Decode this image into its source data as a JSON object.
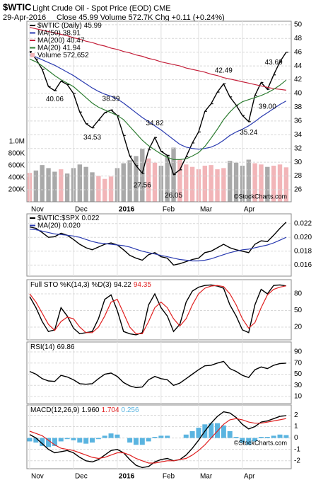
{
  "chart_data": [
    {
      "type": "line",
      "title": "$WTIC",
      "subtitle": "Light Crude Oil - Spot Price (EOD) CME",
      "date": "29-Apr-2016",
      "quote": "Close 45.99  Volume 572.7K  Chg +0.11 (+0.24%)",
      "watermark": "©StockCharts.com",
      "xticks": [
        {
          "value": 0,
          "label": "Nov"
        },
        {
          "value": 7,
          "label": "Dec"
        },
        {
          "value": 14,
          "label": "2016"
        },
        {
          "value": 21,
          "label": "Feb"
        },
        {
          "value": 27,
          "label": "Mar"
        },
        {
          "value": 34,
          "label": "Apr"
        }
      ],
      "ylim": [
        24.25,
        50.5
      ],
      "yticks": [
        26,
        28,
        30,
        32,
        34,
        36,
        38,
        40,
        42,
        44,
        46,
        48,
        50
      ],
      "series": [
        {
          "name": "$WTIC (Daily)",
          "color": "#000000",
          "values": [
            46.1,
            45.0,
            43.5,
            41.0,
            40.4,
            41.8,
            41.3,
            40.0,
            37.3,
            35.6,
            35.0,
            36.1,
            37.2,
            37.6,
            36.8,
            33.9,
            30.9,
            29.5,
            28.4,
            31.8,
            33.6,
            31.6,
            31.0,
            28.2,
            28.9,
            30.8,
            32.8,
            34.4,
            37.4,
            38.5,
            40.2,
            41.4,
            39.5,
            38.3,
            36.8,
            35.9,
            39.7,
            41.6,
            40.6,
            42.7,
            44.6,
            45.99
          ]
        },
        {
          "name": "MA(50)",
          "color": "#2a3bb0",
          "values": [
            45.6,
            45.3,
            44.9,
            44.5,
            44.1,
            43.6,
            43.1,
            42.6,
            42.0,
            41.4,
            40.8,
            40.3,
            39.9,
            39.6,
            39.2,
            38.6,
            37.9,
            37.2,
            36.5,
            35.9,
            35.3,
            34.7,
            34.0,
            33.3,
            32.6,
            32.2,
            32.0,
            31.9,
            32.0,
            32.2,
            32.6,
            33.2,
            33.9,
            34.4,
            34.8,
            35.3,
            35.9,
            36.6,
            37.2,
            37.8,
            38.4,
            38.91
          ]
        },
        {
          "name": "MA(200)",
          "color": "#c4203a",
          "values": [
            49.6,
            49.4,
            49.2,
            49.0,
            48.8,
            48.6,
            48.4,
            48.1,
            47.9,
            47.6,
            47.4,
            47.1,
            46.9,
            46.6,
            46.4,
            46.1,
            45.9,
            45.6,
            45.4,
            45.1,
            44.9,
            44.6,
            44.4,
            44.2,
            44.0,
            43.7,
            43.5,
            43.3,
            43.1,
            42.8,
            42.6,
            42.3,
            42.1,
            41.9,
            41.7,
            41.5,
            41.3,
            41.1,
            40.9,
            40.7,
            40.6,
            40.47
          ]
        },
        {
          "name": "MA(20)",
          "color": "#2e7d32",
          "values": [
            45.0,
            44.6,
            44.0,
            43.3,
            42.6,
            42.0,
            41.5,
            41.0,
            40.2,
            39.4,
            38.6,
            38.0,
            37.6,
            37.2,
            36.8,
            36.2,
            35.2,
            34.2,
            33.2,
            32.4,
            31.8,
            31.2,
            30.7,
            30.4,
            30.4,
            30.5,
            30.9,
            31.4,
            32.3,
            33.5,
            34.8,
            36.2,
            37.3,
            38.2,
            38.8,
            39.1,
            39.4,
            39.7,
            40.1,
            40.6,
            41.2,
            41.94
          ]
        }
      ],
      "annotations": [
        {
          "x": 4,
          "value": 40.06
        },
        {
          "x": 10,
          "value": 34.53
        },
        {
          "x": 13,
          "value": 38.39
        },
        {
          "x": 18,
          "value": 27.56
        },
        {
          "x": 20,
          "value": 34.82
        },
        {
          "x": 23,
          "value": 26.05
        },
        {
          "x": 31,
          "value": 42.49
        },
        {
          "x": 35,
          "value": 35.24
        },
        {
          "x": 38,
          "value": 39,
          "label": "39.00"
        },
        {
          "x": 39,
          "value": 43.69
        }
      ],
      "volume": {
        "name": "Volume",
        "last_label": "572,652",
        "up_color": "#f2b5b8",
        "down_color": "#a9a9a9",
        "ylim": [
          0,
          3000000
        ],
        "yticks": [
          {
            "value": 200000,
            "label": "200K"
          },
          {
            "value": 400000,
            "label": "400K"
          },
          {
            "value": 600000,
            "label": "600K"
          },
          {
            "value": 800000,
            "label": "800K"
          },
          {
            "value": 1000000,
            "label": "1.0M"
          }
        ],
        "values": [
          480000,
          520000,
          610000,
          560000,
          500000,
          540000,
          470000,
          560000,
          620000,
          580000,
          490000,
          430000,
          380000,
          420000,
          560000,
          640000,
          690000,
          760000,
          880000,
          720000,
          650000,
          600000,
          780000,
          900000,
          700000,
          620000,
          580000,
          540000,
          600000,
          610000,
          540000,
          560000,
          680000,
          650000,
          600000,
          700000,
          640000,
          620000,
          580000,
          600000,
          620000,
          572652
        ]
      }
    },
    {
      "type": "line",
      "ylim": [
        0.0144,
        0.0234
      ],
      "yticks": [
        0.016,
        0.018,
        {
          "value": 0.02,
          "label": "0.020"
        },
        0.022
      ],
      "series": [
        {
          "name": "$WTIC:$SPX",
          "color": "#000000",
          "last_label": "0.022",
          "values": [
            0.0215,
            0.0213,
            0.0207,
            0.02,
            0.0201,
            0.0206,
            0.0203,
            0.0197,
            0.019,
            0.0185,
            0.0182,
            0.0186,
            0.019,
            0.0192,
            0.0189,
            0.0182,
            0.0174,
            0.017,
            0.0167,
            0.0175,
            0.0178,
            0.0172,
            0.017,
            0.016,
            0.0162,
            0.0165,
            0.0168,
            0.017,
            0.0178,
            0.018,
            0.0185,
            0.019,
            0.0185,
            0.0182,
            0.018,
            0.0178,
            0.019,
            0.0195,
            0.0194,
            0.0203,
            0.0213,
            0.0222
          ]
        },
        {
          "name": "MA(20)",
          "color": "#2a3bb0",
          "last_label": "0.020",
          "values": [
            0.0212,
            0.0211,
            0.0209,
            0.0207,
            0.0205,
            0.0204,
            0.0203,
            0.0202,
            0.02,
            0.0197,
            0.0194,
            0.0192,
            0.0191,
            0.019,
            0.0189,
            0.0188,
            0.0186,
            0.0183,
            0.018,
            0.0178,
            0.0176,
            0.0174,
            0.0172,
            0.017,
            0.0168,
            0.0167,
            0.0166,
            0.0166,
            0.0167,
            0.0169,
            0.0172,
            0.0175,
            0.0178,
            0.018,
            0.0182,
            0.0183,
            0.0185,
            0.0187,
            0.0189,
            0.0192,
            0.0196,
            0.02
          ]
        }
      ]
    },
    {
      "type": "line",
      "title": "Full STO %K(14,3) %D(3)",
      "ylim": [
        -3,
        105.5
      ],
      "yticks": [
        20,
        50,
        80
      ],
      "series": [
        {
          "color": "#000000",
          "values": [
            75,
            55,
            30,
            12,
            15,
            55,
            40,
            18,
            8,
            10,
            12,
            35,
            70,
            78,
            50,
            12,
            8,
            6,
            10,
            60,
            80,
            55,
            40,
            12,
            25,
            65,
            85,
            92,
            95,
            96,
            94,
            90,
            60,
            40,
            15,
            10,
            60,
            88,
            80,
            95,
            96,
            94.22
          ]
        },
        {
          "color": "#e02020",
          "values": [
            80,
            65,
            45,
            25,
            14,
            30,
            38,
            35,
            20,
            10,
            10,
            20,
            40,
            65,
            70,
            45,
            20,
            8,
            8,
            30,
            55,
            65,
            55,
            35,
            22,
            35,
            60,
            80,
            90,
            94,
            95,
            93,
            80,
            60,
            35,
            18,
            28,
            55,
            78,
            88,
            92,
            94.35
          ]
        }
      ]
    },
    {
      "type": "line",
      "title": "RSI(14)",
      "ylim": [
        -2.7,
        107.8
      ],
      "yticks": [
        10,
        30,
        50,
        70,
        90
      ],
      "series": [
        {
          "color": "#000000",
          "values": [
            55,
            50,
            42,
            38,
            37,
            48,
            45,
            40,
            33,
            32,
            33,
            42,
            50,
            52,
            46,
            35,
            29,
            26,
            27,
            40,
            46,
            42,
            40,
            30,
            34,
            42,
            50,
            58,
            65,
            66,
            70,
            73,
            60,
            55,
            48,
            44,
            58,
            63,
            60,
            66,
            69,
            69.86
          ]
        }
      ]
    },
    {
      "type": "line",
      "title": "MACD(12,26,9)",
      "watermark": "©StockCharts.com",
      "xticks": [
        {
          "value": 0,
          "label": "Nov"
        },
        {
          "value": 7,
          "label": "Dec"
        },
        {
          "value": 14,
          "label": "2016"
        },
        {
          "value": 21,
          "label": "Feb"
        },
        {
          "value": 27,
          "label": "Mar"
        },
        {
          "value": 34,
          "label": "Apr"
        }
      ],
      "ylim": [
        -2.7,
        2.9
      ],
      "yticks": [
        -2,
        -1,
        0,
        1,
        2
      ],
      "series": [
        {
          "type": "bar",
          "color": "#5ab4e0",
          "values": [
            -0.3,
            -0.4,
            -0.7,
            -0.8,
            -0.7,
            -0.3,
            -0.1,
            -0.2,
            -0.4,
            -0.5,
            -0.4,
            -0.1,
            0.2,
            0.4,
            0.3,
            0.0,
            -0.4,
            -0.6,
            -0.6,
            -0.3,
            0.1,
            0.2,
            0.2,
            0.0,
            0.0,
            0.3,
            0.6,
            0.9,
            1.2,
            1.3,
            1.3,
            1.1,
            0.6,
            0.1,
            -0.4,
            -0.6,
            -0.3,
            0.1,
            0.1,
            0.2,
            0.3,
            0.256
          ]
        },
        {
          "color": "#000000",
          "last_label": "1.960",
          "values": [
            0.3,
            0.0,
            -0.5,
            -1.0,
            -1.3,
            -1.2,
            -1.1,
            -1.3,
            -1.7,
            -2.0,
            -2.1,
            -1.9,
            -1.5,
            -1.1,
            -1.0,
            -1.3,
            -1.9,
            -2.4,
            -2.6,
            -2.5,
            -2.1,
            -1.9,
            -1.8,
            -2.0,
            -1.9,
            -1.5,
            -0.9,
            -0.2,
            0.6,
            1.3,
            1.9,
            2.3,
            2.2,
            1.8,
            1.2,
            0.8,
            1.0,
            1.4,
            1.5,
            1.7,
            1.9,
            1.96
          ]
        },
        {
          "color": "#e02020",
          "last_label": "1.704",
          "values": [
            0.6,
            0.4,
            0.2,
            -0.2,
            -0.6,
            -0.9,
            -1.0,
            -1.1,
            -1.3,
            -1.5,
            -1.7,
            -1.8,
            -1.7,
            -1.5,
            -1.3,
            -1.3,
            -1.5,
            -1.8,
            -2.0,
            -2.2,
            -2.2,
            -2.1,
            -2.0,
            -2.0,
            -1.9,
            -1.8,
            -1.5,
            -1.1,
            -0.6,
            0.0,
            0.6,
            1.2,
            1.6,
            1.7,
            1.6,
            1.4,
            1.3,
            1.3,
            1.4,
            1.5,
            1.6,
            1.704
          ]
        }
      ]
    }
  ]
}
